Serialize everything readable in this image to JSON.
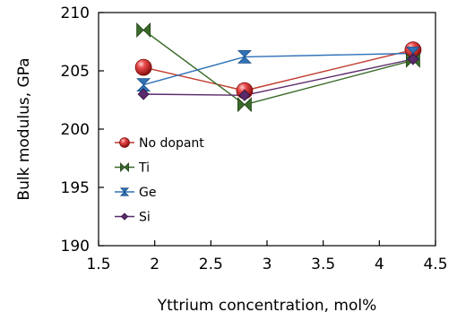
{
  "chart_data": {
    "type": "line",
    "xlabel": "Yttrium concentration, mol%",
    "ylabel": "Bulk modulus, GPa",
    "xlim": [
      1.5,
      4.5
    ],
    "ylim": [
      190,
      210
    ],
    "xticks": [
      "1.5",
      "2",
      "2.5",
      "3",
      "3.5",
      "4",
      "4.5"
    ],
    "yticks": [
      "190",
      "195",
      "200",
      "205",
      "210"
    ],
    "grid": false,
    "legend_position": "left",
    "series": [
      {
        "name": "No dopant",
        "marker": "sphere",
        "color": "#c0392b",
        "x": [
          1.9,
          2.8,
          4.3
        ],
        "y": [
          205.3,
          203.3,
          206.8
        ]
      },
      {
        "name": "Ti",
        "marker": "bowtie-horizontal",
        "color": "#3a6b2a",
        "x": [
          1.9,
          2.8,
          4.3
        ],
        "y": [
          208.5,
          202.1,
          205.9
        ]
      },
      {
        "name": "Ge",
        "marker": "hourglass",
        "color": "#2f72b8",
        "x": [
          1.9,
          2.8,
          4.3
        ],
        "y": [
          203.8,
          206.2,
          206.5
        ]
      },
      {
        "name": "Si",
        "marker": "diamond",
        "color": "#5b2a6b",
        "x": [
          1.9,
          2.8,
          4.3
        ],
        "y": [
          203.0,
          202.9,
          206.0
        ]
      }
    ]
  }
}
